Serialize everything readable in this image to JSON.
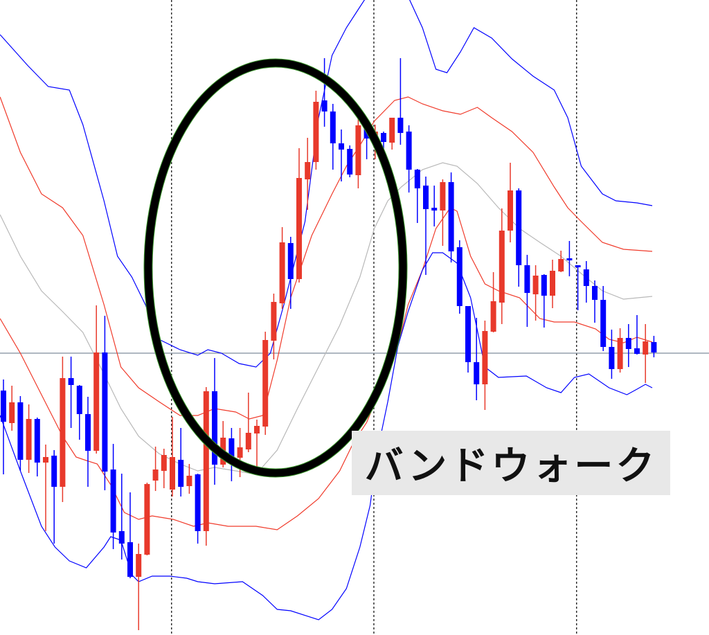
{
  "chart_data": {
    "type": "candlestick",
    "title": "",
    "xlabel": "",
    "ylabel": "",
    "ylim": [
      8.3,
      100
    ],
    "grid": false,
    "colors": {
      "up": "#e8392b",
      "down": "#0000ff",
      "band_outer": "#0000ff",
      "band_inner": "#f03a2a",
      "middle": "#b8b8b8",
      "reference_line": "#7d8c9c",
      "annotation": "#000000"
    },
    "reference_line": 49.0,
    "period_separators": [
      19.9,
      43.85,
      67.85
    ],
    "candles_ohlc": [
      [
        43.6,
        45.2,
        31.5,
        39.1
      ],
      [
        38.9,
        44.3,
        37.8,
        41.9
      ],
      [
        41.9,
        42.8,
        32.0,
        33.6
      ],
      [
        33.6,
        41.6,
        31.7,
        39.5
      ],
      [
        39.5,
        39.7,
        31.2,
        33.2
      ],
      [
        33.2,
        35.8,
        23.3,
        34.0
      ],
      [
        34.2,
        35.0,
        21.5,
        29.7
      ],
      [
        29.7,
        48.5,
        27.5,
        45.4
      ],
      [
        45.4,
        48.5,
        38.2,
        44.4
      ],
      [
        44.3,
        44.4,
        36.5,
        40.2
      ],
      [
        40.2,
        42.7,
        29.7,
        34.9
      ],
      [
        34.9,
        55.9,
        34.5,
        49.1
      ],
      [
        49.1,
        54.4,
        29.2,
        31.9
      ],
      [
        32.2,
        35.9,
        20.7,
        23.1
      ],
      [
        23.3,
        31.6,
        19.2,
        21.5
      ],
      [
        21.7,
        28.9,
        16.5,
        16.7
      ],
      [
        16.7,
        21.5,
        9.0,
        20.0
      ],
      [
        19.9,
        30.3,
        19.8,
        30.1
      ],
      [
        30.6,
        35.5,
        29.1,
        32.2
      ],
      [
        32.0,
        35.2,
        29.5,
        34.3
      ],
      [
        29.3,
        39.8,
        28.3,
        34.0
      ],
      [
        33.6,
        38.2,
        28.3,
        29.7
      ],
      [
        29.8,
        33.0,
        28.7,
        31.3
      ],
      [
        31.5,
        31.6,
        21.5,
        23.3
      ],
      [
        23.3,
        44.1,
        21.2,
        43.5
      ],
      [
        43.5,
        48.3,
        30.0,
        32.9
      ],
      [
        32.9,
        39.2,
        32.5,
        36.8
      ],
      [
        36.7,
        38.2,
        30.5,
        33.9
      ],
      [
        33.9,
        38.2,
        31.1,
        35.4
      ],
      [
        35.1,
        43.3,
        34.7,
        37.5
      ],
      [
        37.4,
        39.4,
        31.9,
        38.5
      ],
      [
        38.4,
        52.1,
        37.2,
        50.9
      ],
      [
        50.8,
        57.6,
        48.1,
        56.4
      ],
      [
        56.2,
        67.2,
        55.4,
        65.0
      ],
      [
        64.9,
        65.8,
        55.4,
        59.7
      ],
      [
        59.7,
        78.6,
        59.2,
        74.3
      ],
      [
        74.1,
        80.1,
        69.7,
        76.6
      ],
      [
        76.6,
        86.9,
        75.5,
        85.3
      ],
      [
        85.5,
        91.6,
        81.7,
        83.9
      ],
      [
        83.9,
        85.0,
        75.5,
        79.3
      ],
      [
        79.3,
        81.3,
        73.8,
        78.4
      ],
      [
        78.5,
        79.0,
        74.4,
        74.8
      ],
      [
        74.7,
        82.9,
        72.8,
        81.9
      ],
      [
        81.5,
        82.5,
        77.0,
        80.0
      ],
      [
        79.5,
        82.0,
        77.0,
        81.0
      ],
      [
        80.8,
        81.0,
        78.4,
        79.5
      ],
      [
        79.4,
        83.0,
        78.4,
        83.0
      ],
      [
        83.0,
        91.6,
        79.1,
        80.8
      ],
      [
        81.0,
        81.9,
        72.2,
        75.5
      ],
      [
        75.5,
        75.6,
        67.8,
        72.8
      ],
      [
        73.2,
        74.5,
        60.3,
        69.8
      ],
      [
        70.0,
        73.2,
        67.3,
        69.6
      ],
      [
        69.6,
        74.1,
        64.5,
        73.7
      ],
      [
        73.7,
        75.1,
        62.1,
        63.7
      ],
      [
        64.3,
        65.3,
        54.7,
        55.8
      ],
      [
        55.8,
        55.8,
        46.2,
        47.7
      ],
      [
        47.7,
        54.1,
        42.2,
        44.5
      ],
      [
        44.5,
        53.7,
        40.8,
        52.2
      ],
      [
        52.1,
        60.7,
        52.0,
        56.5
      ],
      [
        56.3,
        69.9,
        53.2,
        66.7
      ],
      [
        66.7,
        76.5,
        65.0,
        72.5
      ],
      [
        72.5,
        72.8,
        58.6,
        61.7
      ],
      [
        61.7,
        63.2,
        52.8,
        57.7
      ],
      [
        57.5,
        61.7,
        53.7,
        60.2
      ],
      [
        60.3,
        60.4,
        52.7,
        57.3
      ],
      [
        57.3,
        62.5,
        55.5,
        60.9
      ],
      [
        60.8,
        63.8,
        60.7,
        62.6
      ],
      [
        62.7,
        65.2,
        60.1,
        62.4
      ],
      [
        61.7,
        61.7,
        55.2,
        61.4
      ],
      [
        61.1,
        62.3,
        56.3,
        58.7
      ],
      [
        58.7,
        59.5,
        53.4,
        56.7
      ],
      [
        56.7,
        58.7,
        49.3,
        49.9
      ],
      [
        49.9,
        52.4,
        45.3,
        46.7
      ],
      [
        46.7,
        52.6,
        46.2,
        51.2
      ],
      [
        51.2,
        53.2,
        47.0,
        49.6
      ],
      [
        49.7,
        54.5,
        48.8,
        48.9
      ],
      [
        48.8,
        53.2,
        44.7,
        50.7
      ],
      [
        50.6,
        51.5,
        48.4,
        49.1
      ]
    ],
    "bands": {
      "upper_outer": [
        [
          -0.4,
          95
        ],
        [
          2.9,
          90.5
        ],
        [
          5.3,
          87.5
        ],
        [
          7.8,
          87
        ],
        [
          9.4,
          82
        ],
        [
          11.9,
          71
        ],
        [
          13.5,
          63
        ],
        [
          15.2,
          60
        ],
        [
          16.8,
          56
        ],
        [
          18.4,
          51
        ],
        [
          20.9,
          49.5
        ],
        [
          23.0,
          48.7
        ],
        [
          24.2,
          49.5
        ],
        [
          25.8,
          49
        ],
        [
          27.9,
          47.5
        ],
        [
          29.9,
          47
        ],
        [
          31.6,
          49
        ],
        [
          33.2,
          56
        ],
        [
          35.7,
          68
        ],
        [
          37.3,
          83
        ],
        [
          38.9,
          92
        ],
        [
          40.6,
          96
        ],
        [
          42.2,
          99
        ],
        [
          43.0,
          100.5
        ],
        [
          47.9,
          100.5
        ],
        [
          49.6,
          96
        ],
        [
          51.2,
          90
        ],
        [
          52.5,
          89.5
        ],
        [
          54.1,
          92.5
        ],
        [
          55.7,
          96
        ],
        [
          57.8,
          94.5
        ],
        [
          60.2,
          91.5
        ],
        [
          62.7,
          89
        ],
        [
          65.2,
          87
        ],
        [
          66.8,
          83
        ],
        [
          68.4,
          76
        ],
        [
          70.9,
          72
        ],
        [
          72.5,
          71
        ],
        [
          75.0,
          70.7
        ],
        [
          76.8,
          70.3
        ]
      ],
      "upper_inner": [
        [
          -0.4,
          86
        ],
        [
          2.0,
          78
        ],
        [
          4.5,
          72
        ],
        [
          7.0,
          70
        ],
        [
          9.4,
          66
        ],
        [
          11.9,
          56
        ],
        [
          13.9,
          47
        ],
        [
          16.0,
          44
        ],
        [
          18.4,
          42
        ],
        [
          20.9,
          40
        ],
        [
          23.0,
          40
        ],
        [
          25.0,
          41
        ],
        [
          27.5,
          40.5
        ],
        [
          29.1,
          39.5
        ],
        [
          30.7,
          40
        ],
        [
          32.4,
          48
        ],
        [
          34.0,
          57
        ],
        [
          36.5,
          66
        ],
        [
          38.9,
          72
        ],
        [
          40.6,
          76
        ],
        [
          42.2,
          79
        ],
        [
          43.9,
          82.5
        ],
        [
          46.3,
          85.5
        ],
        [
          47.9,
          86
        ],
        [
          49.6,
          85
        ],
        [
          52.0,
          84
        ],
        [
          54.1,
          83.5
        ],
        [
          56.1,
          84.5
        ],
        [
          57.8,
          83
        ],
        [
          60.2,
          81
        ],
        [
          62.7,
          78
        ],
        [
          65.2,
          73
        ],
        [
          66.8,
          70
        ],
        [
          68.4,
          68
        ],
        [
          70.9,
          65
        ],
        [
          73.4,
          64
        ],
        [
          76.8,
          63.7
        ]
      ],
      "middle": [
        [
          -0.4,
          69
        ],
        [
          2.0,
          63
        ],
        [
          4.5,
          58
        ],
        [
          7.0,
          55
        ],
        [
          9.4,
          52
        ],
        [
          11.9,
          46
        ],
        [
          13.9,
          41
        ],
        [
          16.0,
          37
        ],
        [
          18.4,
          34.5
        ],
        [
          20.9,
          33
        ],
        [
          23.0,
          32
        ],
        [
          25.0,
          32.5
        ],
        [
          27.5,
          32
        ],
        [
          29.9,
          31.5
        ],
        [
          32.4,
          35
        ],
        [
          34.8,
          41
        ],
        [
          37.3,
          47
        ],
        [
          39.8,
          53
        ],
        [
          42.2,
          60
        ],
        [
          43.9,
          67
        ],
        [
          45.5,
          71
        ],
        [
          47.1,
          73
        ],
        [
          49.6,
          75.5
        ],
        [
          52.0,
          76.5
        ],
        [
          53.7,
          76
        ],
        [
          56.1,
          73.5
        ],
        [
          58.6,
          70
        ],
        [
          61.1,
          67
        ],
        [
          63.5,
          65
        ],
        [
          66.0,
          63
        ],
        [
          68.4,
          60.5
        ],
        [
          70.9,
          58
        ],
        [
          73.4,
          56.8
        ],
        [
          76.8,
          57.2
        ]
      ],
      "lower_inner": [
        [
          -0.4,
          54
        ],
        [
          2.0,
          49
        ],
        [
          4.5,
          43
        ],
        [
          7.0,
          37
        ],
        [
          8.6,
          34
        ],
        [
          9.8,
          33.5
        ],
        [
          11.1,
          33
        ],
        [
          12.7,
          30
        ],
        [
          14.3,
          26
        ],
        [
          16.0,
          25
        ],
        [
          17.6,
          25.5
        ],
        [
          20.1,
          25
        ],
        [
          22.5,
          24
        ],
        [
          24.2,
          24.5
        ],
        [
          26.6,
          24
        ],
        [
          29.9,
          24
        ],
        [
          32.4,
          23.5
        ],
        [
          34.8,
          25.5
        ],
        [
          37.3,
          28
        ],
        [
          39.8,
          32
        ],
        [
          41.4,
          36
        ],
        [
          43.0,
          39
        ],
        [
          44.7,
          44
        ],
        [
          46.7,
          50
        ],
        [
          47.9,
          56
        ],
        [
          49.6,
          61
        ],
        [
          51.2,
          67
        ],
        [
          52.9,
          70
        ],
        [
          53.7,
          69.5
        ],
        [
          55.3,
          63
        ],
        [
          57.0,
          59
        ],
        [
          58.6,
          58
        ],
        [
          61.1,
          57
        ],
        [
          63.5,
          54
        ],
        [
          65.2,
          53.5
        ],
        [
          67.6,
          53.5
        ],
        [
          70.1,
          52.5
        ],
        [
          71.7,
          51
        ],
        [
          73.4,
          50.5
        ],
        [
          75.0,
          51.3
        ],
        [
          76.8,
          50.6
        ]
      ],
      "lower_outer": [
        [
          -0.4,
          40
        ],
        [
          2.0,
          32
        ],
        [
          4.5,
          24
        ],
        [
          6.1,
          21
        ],
        [
          7.8,
          19
        ],
        [
          9.8,
          18
        ],
        [
          11.9,
          21
        ],
        [
          12.7,
          22.5
        ],
        [
          13.9,
          22
        ],
        [
          15.2,
          17
        ],
        [
          16.0,
          16
        ],
        [
          17.6,
          16.8
        ],
        [
          19.7,
          16.8
        ],
        [
          21.7,
          16.5
        ],
        [
          23.0,
          16
        ],
        [
          25.0,
          15.7
        ],
        [
          28.3,
          16
        ],
        [
          30.7,
          14
        ],
        [
          32.4,
          12
        ],
        [
          34.0,
          11.8
        ],
        [
          37.3,
          10.5
        ],
        [
          38.9,
          12
        ],
        [
          40.6,
          15
        ],
        [
          42.2,
          21
        ],
        [
          43.4,
          27
        ],
        [
          44.3,
          35
        ],
        [
          45.5,
          42
        ],
        [
          46.7,
          50
        ],
        [
          47.9,
          55
        ],
        [
          49.6,
          61
        ],
        [
          50.8,
          63.5
        ],
        [
          52.0,
          63.5
        ],
        [
          53.7,
          62
        ],
        [
          55.3,
          57
        ],
        [
          57.0,
          47
        ],
        [
          58.6,
          45.5
        ],
        [
          61.9,
          45.7
        ],
        [
          64.3,
          44
        ],
        [
          66.0,
          43.3
        ],
        [
          67.6,
          45.5
        ],
        [
          69.3,
          46
        ],
        [
          71.7,
          44
        ],
        [
          73.8,
          43
        ],
        [
          75.0,
          43.8
        ],
        [
          76.0,
          44.5
        ],
        [
          76.8,
          44
        ]
      ]
    },
    "annotation": {
      "text": "バンドウォーク",
      "shape": "ellipse"
    }
  }
}
